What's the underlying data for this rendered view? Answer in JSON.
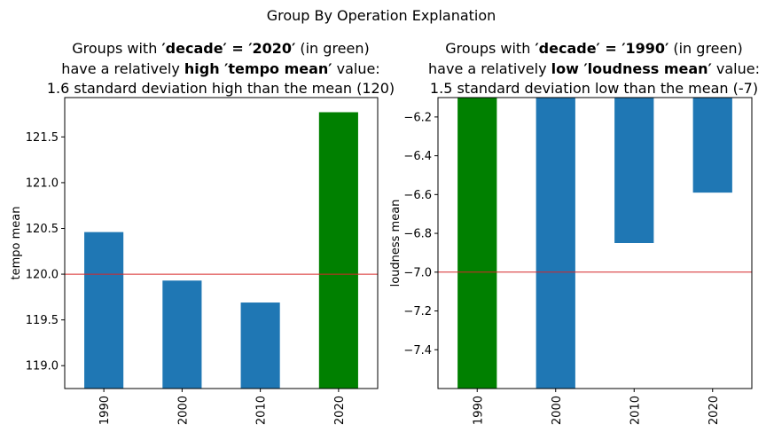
{
  "figure": {
    "suptitle": "Group By Operation Explanation"
  },
  "chart_data": [
    {
      "type": "bar",
      "title_lines": [
        [
          {
            "text": "Groups with ",
            "bold": false
          },
          {
            "text": "′decade′ = ′2020′",
            "bold": true
          },
          {
            "text": " (in green)",
            "bold": false
          }
        ],
        [
          {
            "text": "have a relatively ",
            "bold": false
          },
          {
            "text": "high ′tempo mean′",
            "bold": true
          },
          {
            "text": " value:",
            "bold": false
          }
        ],
        [
          {
            "text": "1.6 standard deviation high than the mean (120)",
            "bold": false
          }
        ]
      ],
      "ylabel": "tempo mean",
      "xlabel": "",
      "categories": [
        "1990",
        "2000",
        "2010",
        "2020"
      ],
      "values": [
        120.46,
        119.93,
        119.69,
        121.77
      ],
      "bar_colors": [
        "#1f77b4",
        "#1f77b4",
        "#1f77b4",
        "#008000"
      ],
      "highlight": "2020",
      "ylim": [
        118.75,
        121.93
      ],
      "yticks": [
        119.0,
        119.5,
        120.0,
        120.5,
        121.0,
        121.5
      ],
      "ytick_labels": [
        "119.0",
        "119.5",
        "120.0",
        "120.5",
        "121.0",
        "121.5"
      ],
      "mean_line": {
        "value": 120.0,
        "color": "#d62728"
      },
      "grid": false,
      "legend": "none"
    },
    {
      "type": "bar",
      "title_lines": [
        [
          {
            "text": "Groups with ",
            "bold": false
          },
          {
            "text": "′decade′ = ′1990′",
            "bold": true
          },
          {
            "text": " (in green)",
            "bold": false
          }
        ],
        [
          {
            "text": "have a relatively ",
            "bold": false
          },
          {
            "text": "low ′loudness mean′",
            "bold": true
          },
          {
            "text": " value:",
            "bold": false
          }
        ],
        [
          {
            "text": "1.5 standard deviation low than the mean (-7)",
            "bold": false
          }
        ]
      ],
      "ylabel": "loudness mean",
      "xlabel": "",
      "categories": [
        "1990",
        "2000",
        "2010",
        "2020"
      ],
      "values": [
        -7.6,
        -7.6,
        -6.85,
        -6.59
      ],
      "bar_colors": [
        "#008000",
        "#1f77b4",
        "#1f77b4",
        "#1f77b4"
      ],
      "highlight": "1990",
      "ylim": [
        -7.6,
        -6.1
      ],
      "yticks": [
        -7.4,
        -7.2,
        -7.0,
        -6.8,
        -6.6,
        -6.4,
        -6.2
      ],
      "ytick_labels": [
        "−7.4",
        "−7.2",
        "−7.0",
        "−6.8",
        "−6.6",
        "−6.4",
        "−6.2"
      ],
      "mean_line": {
        "value": -7.0,
        "color": "#d62728"
      },
      "bar_bottom": -6.1,
      "grid": false,
      "legend": "none"
    }
  ]
}
